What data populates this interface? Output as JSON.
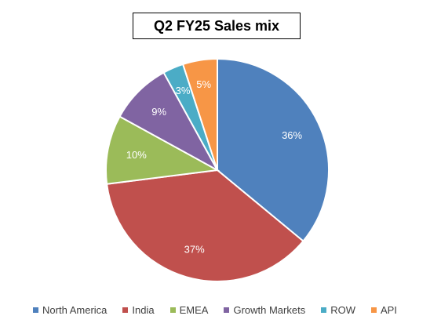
{
  "chart_data": {
    "type": "pie",
    "title": "Q2 FY25 Sales mix",
    "categories": [
      "North America",
      "India",
      "EMEA",
      "Growth Markets",
      "ROW",
      "API"
    ],
    "values": [
      36,
      37,
      10,
      9,
      3,
      5
    ],
    "value_labels": [
      "36%",
      "37%",
      "10%",
      "9%",
      "3%",
      "5%"
    ],
    "colors": [
      "#4f81bd",
      "#c0504d",
      "#9bbb59",
      "#8064a2",
      "#4bacc6",
      "#f79646"
    ],
    "start_angle": "12 o'clock",
    "direction": "clockwise",
    "legend_position": "bottom"
  }
}
